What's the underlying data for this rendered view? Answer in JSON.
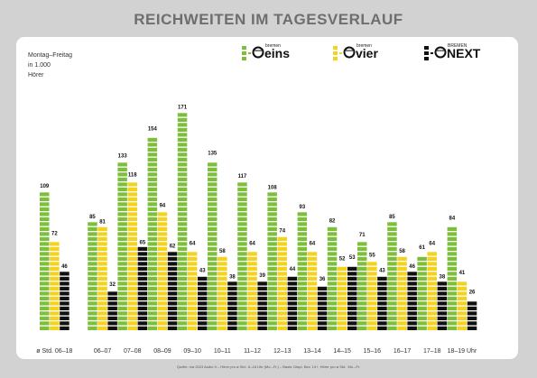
{
  "title": "REICHWEITEN IM TAGESVERLAUF",
  "notes": {
    "line1": "Montag–Freitag",
    "line2": "in 1.000",
    "line3": "Hörer"
  },
  "source": "Quelle: ma 2023 Audio II – Hörer pro ø Std.; 6–18 Uhr (Mo.–Fr.) – Basis: Dtspr. Bev. 14+, Hörer pro ø Std., Mo.–Fr.",
  "colors": {
    "eins": "#7dbf3b",
    "vier": "#f5d21e",
    "next": "#111111",
    "background": "#d2d2d2",
    "card": "#ffffff"
  },
  "legend": [
    {
      "key": "eins",
      "small": "bremen",
      "big": "eins"
    },
    {
      "key": "vier",
      "small": "bremen",
      "big": "vier"
    },
    {
      "key": "next",
      "small": "BREMEN",
      "big": "NEXT"
    }
  ],
  "chart_data": {
    "type": "bar",
    "categories": [
      "ø Std. 06–18",
      "06–07",
      "07–08",
      "08–09",
      "09–10",
      "10–11",
      "11–12",
      "12–13",
      "13–14",
      "14–15",
      "15–16",
      "16–17",
      "17–18",
      "18–19 Uhr"
    ],
    "series": [
      {
        "name": "bremen eins",
        "values": [
          109,
          85,
          133,
          154,
          171,
          135,
          117,
          108,
          93,
          82,
          71,
          85,
          61,
          84
        ]
      },
      {
        "name": "bremen vier",
        "values": [
          72,
          81,
          118,
          94,
          64,
          58,
          64,
          74,
          64,
          52,
          55,
          58,
          64,
          41
        ]
      },
      {
        "name": "BREMEN NEXT",
        "values": [
          46,
          32,
          65,
          62,
          43,
          38,
          39,
          44,
          36,
          53,
          43,
          46,
          38,
          26
        ]
      }
    ],
    "ylim": [
      0,
      180
    ],
    "grid": false
  }
}
